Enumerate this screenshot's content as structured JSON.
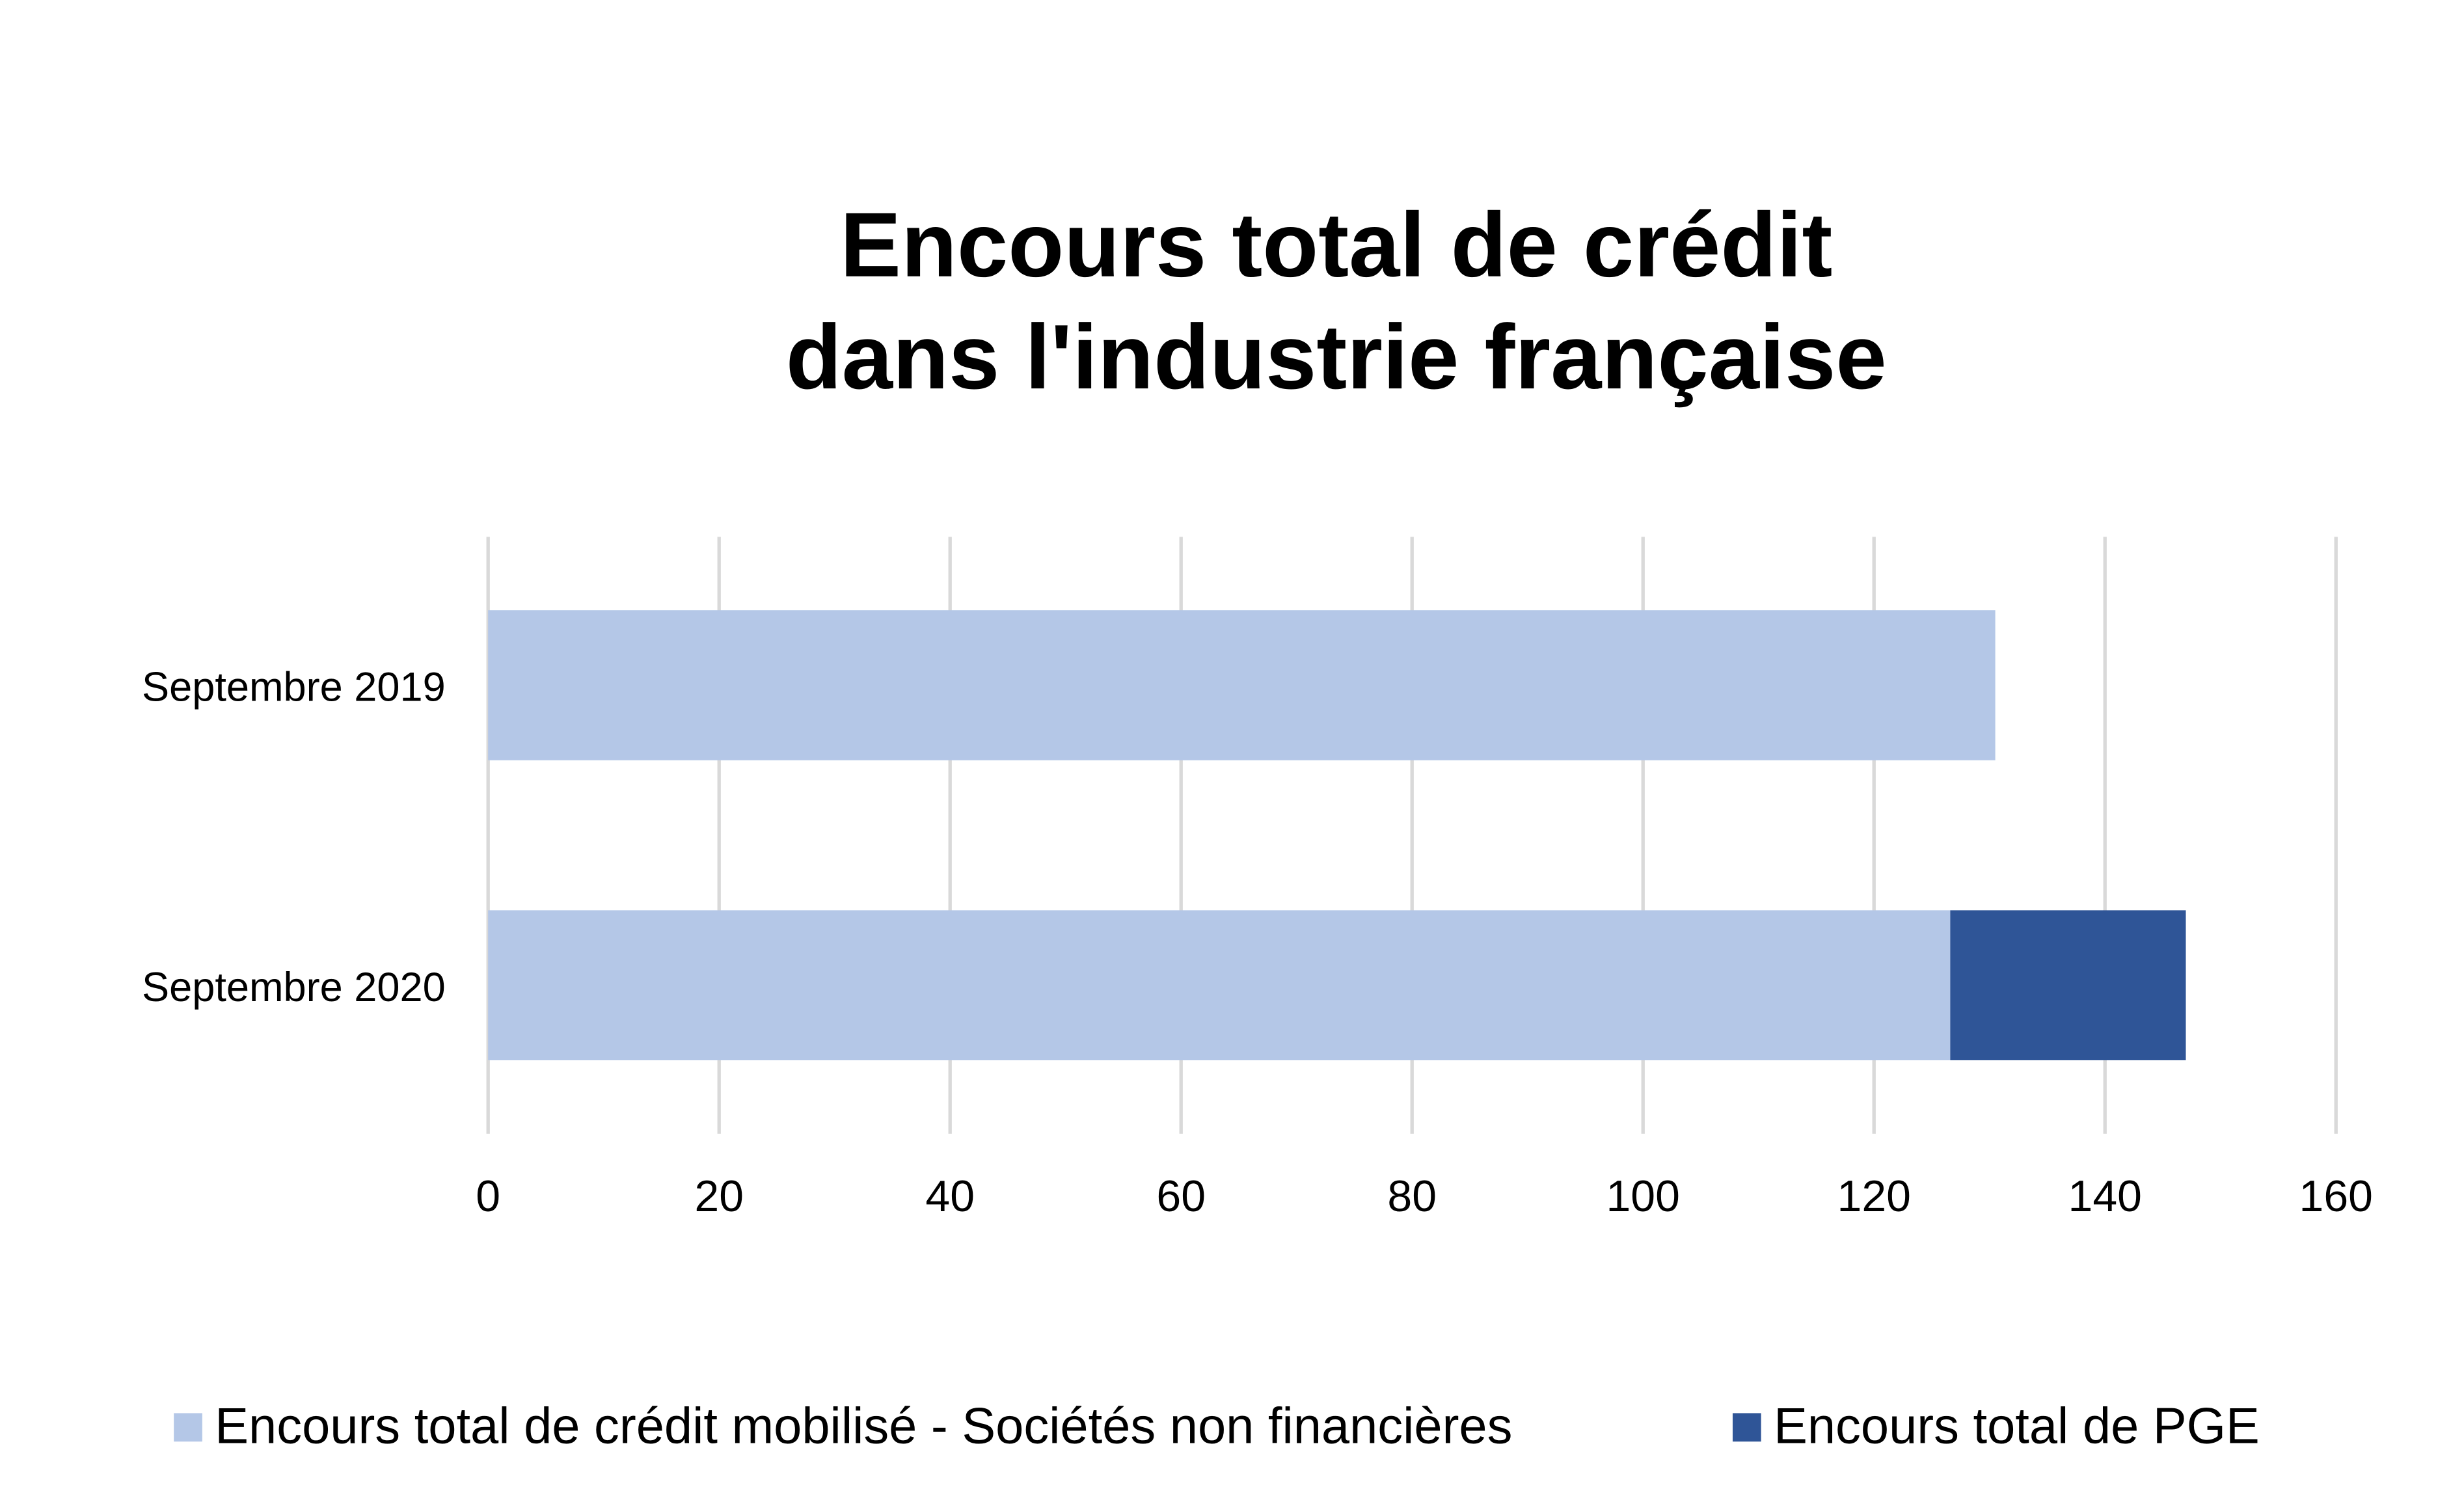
{
  "chart_data": {
    "type": "bar",
    "orientation": "horizontal",
    "stacked": true,
    "title": [
      "Encours total de crédit",
      "dans l'industrie française"
    ],
    "categories": [
      "Septembre 2019",
      "Septembre 2020"
    ],
    "series": [
      {
        "name": "Encours total de crédit mobilisé - Sociétés non financières",
        "color": "#b4c7e7",
        "values": [
          130.5,
          126.6
        ]
      },
      {
        "name": "Encours total de PGE",
        "color": "#2f5597",
        "values": [
          0,
          20.4
        ]
      }
    ],
    "xlim": [
      0,
      160
    ],
    "xticks": [
      "0",
      "20",
      "40",
      "60",
      "80",
      "100",
      "120",
      "140",
      "160"
    ],
    "grid": true,
    "gridColor": "#d9d9d9",
    "legend": "bottom"
  }
}
